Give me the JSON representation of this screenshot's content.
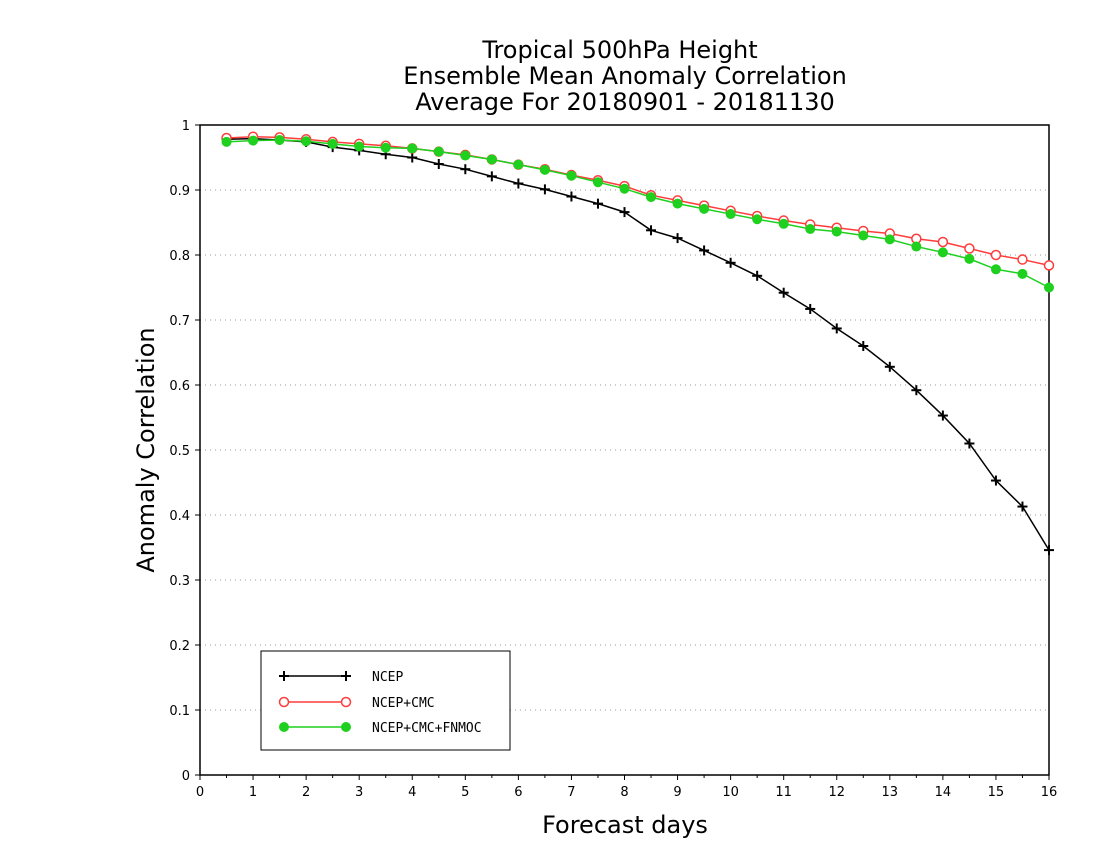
{
  "chart_data": {
    "type": "line",
    "title_lines": [
      "Tropical 500hPa Height",
      "Ensemble Mean Anomaly Correlation",
      "Average For 20180901 - 20181130"
    ],
    "xlabel": "Forecast days",
    "ylabel": "Anomaly Correlation",
    "xlim": [
      0,
      16
    ],
    "ylim": [
      0,
      1
    ],
    "x_ticks": [
      "0",
      "1",
      "2",
      "3",
      "4",
      "5",
      "6",
      "7",
      "8",
      "9",
      "10",
      "11",
      "12",
      "13",
      "14",
      "15",
      "16"
    ],
    "y_ticks": [
      "0",
      "0.1",
      "0.2",
      "0.3",
      "0.4",
      "0.5",
      "0.6",
      "0.7",
      "0.8",
      "0.9",
      "1"
    ],
    "grid": "horizontal dotted",
    "legend_position": "bottom-left",
    "x": [
      0.5,
      1,
      1.5,
      2,
      2.5,
      3,
      3.5,
      4,
      4.5,
      5,
      5.5,
      6,
      6.5,
      7,
      7.5,
      8,
      8.5,
      9,
      9.5,
      10,
      10.5,
      11,
      11.5,
      12,
      12.5,
      13,
      13.5,
      14,
      14.5,
      15,
      15.5,
      16
    ],
    "series": [
      {
        "name": "NCEP",
        "color": "#000000",
        "marker": "plus",
        "values": [
          0.978,
          0.979,
          0.977,
          0.974,
          0.966,
          0.961,
          0.955,
          0.95,
          0.94,
          0.932,
          0.921,
          0.91,
          0.901,
          0.89,
          0.879,
          0.866,
          0.838,
          0.826,
          0.807,
          0.788,
          0.768,
          0.742,
          0.717,
          0.687,
          0.66,
          0.628,
          0.592,
          0.553,
          0.51,
          0.453,
          0.413,
          0.346
        ]
      },
      {
        "name": "NCEP+CMC",
        "color": "#ff3b3b",
        "marker": "open-circle",
        "values": [
          0.98,
          0.982,
          0.981,
          0.978,
          0.974,
          0.971,
          0.968,
          0.964,
          0.959,
          0.954,
          0.947,
          0.939,
          0.932,
          0.923,
          0.915,
          0.906,
          0.892,
          0.884,
          0.876,
          0.868,
          0.86,
          0.853,
          0.847,
          0.842,
          0.837,
          0.833,
          0.825,
          0.82,
          0.81,
          0.8,
          0.793,
          0.784
        ]
      },
      {
        "name": "NCEP+CMC+FNMOC",
        "color": "#1fd01f",
        "marker": "filled-circle",
        "values": [
          0.974,
          0.976,
          0.977,
          0.975,
          0.971,
          0.967,
          0.965,
          0.964,
          0.959,
          0.953,
          0.947,
          0.939,
          0.931,
          0.922,
          0.912,
          0.902,
          0.889,
          0.879,
          0.871,
          0.863,
          0.855,
          0.848,
          0.84,
          0.836,
          0.83,
          0.824,
          0.813,
          0.804,
          0.794,
          0.778,
          0.771,
          0.75
        ]
      }
    ]
  }
}
